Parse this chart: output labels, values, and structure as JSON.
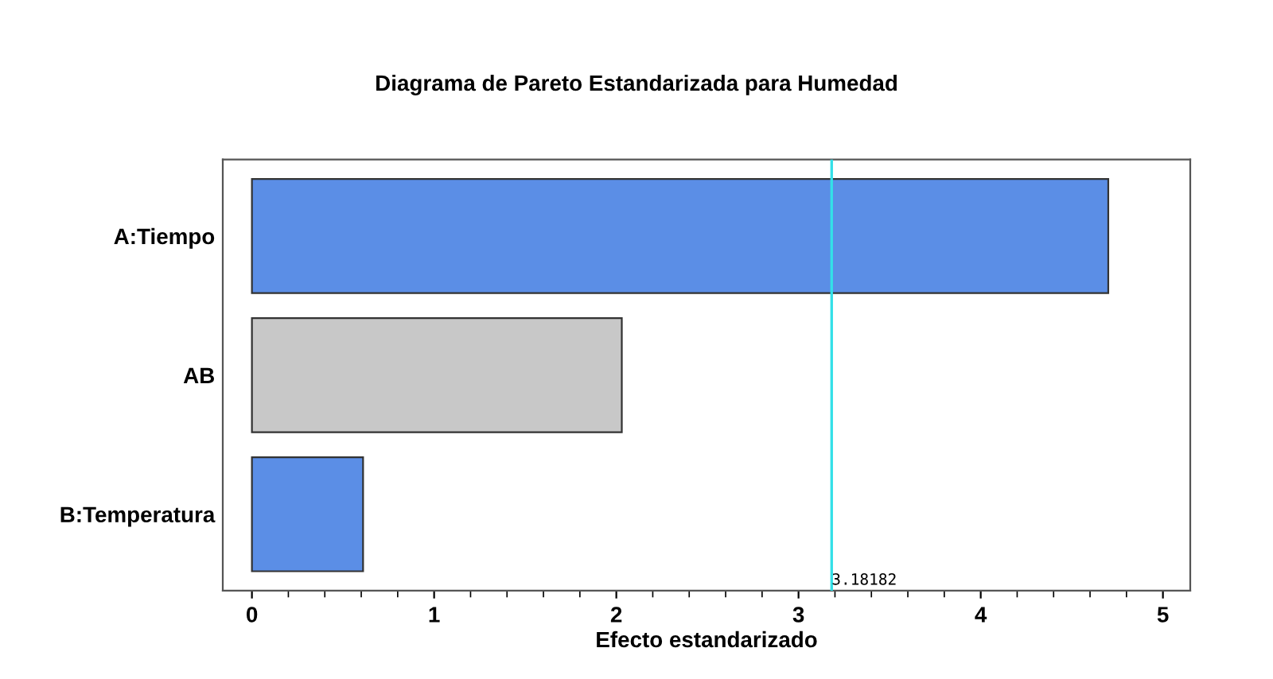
{
  "chart_data": {
    "type": "bar",
    "orientation": "horizontal",
    "title": "Diagrama de Pareto Estandarizada para Humedad",
    "xlabel": "Efecto estandarizado",
    "categories": [
      "A:Tiempo",
      "AB",
      "B:Temperatura"
    ],
    "values": [
      4.7,
      2.03,
      0.61
    ],
    "colors": [
      "#5b8ee6",
      "#c8c8c8",
      "#5b8ee6"
    ],
    "xlim": [
      -0.16,
      5.15
    ],
    "xticks": [
      0,
      1,
      2,
      3,
      4,
      5
    ],
    "ref_lines": [
      {
        "axis": "x",
        "value": 3.18182,
        "label": "3.18182",
        "color": "#33e0e8"
      }
    ],
    "grid": false
  }
}
